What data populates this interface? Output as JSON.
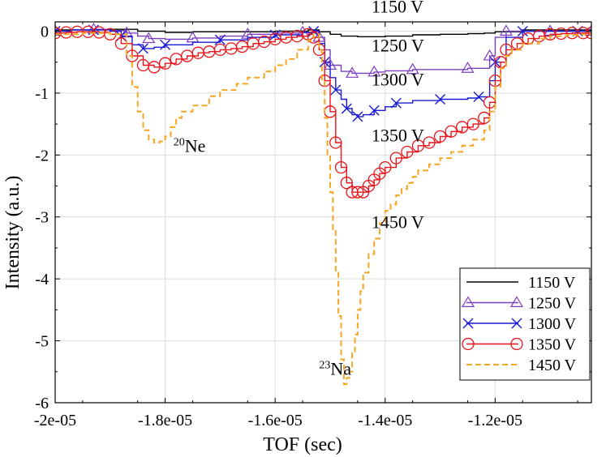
{
  "chart_data": {
    "type": "line",
    "title": "",
    "xlabel": "TOF (sec)",
    "ylabel": "Intensity (a.u.)",
    "xlim": [
      -2e-05,
      -1.025e-05
    ],
    "ylim": [
      -6,
      0.15
    ],
    "grid": true,
    "legend_position": "bottom-right",
    "x_ticks": [
      -2e-05,
      -1.8e-05,
      -1.6e-05,
      -1.4e-05,
      -1.2e-05
    ],
    "x_tick_labels": [
      "-2e-05",
      "-1.8e-05",
      "-1.6e-05",
      "-1.4e-05",
      "-1.2e-05"
    ],
    "y_ticks": [
      0,
      -1,
      -2,
      -3,
      -4,
      -5,
      -6
    ],
    "y_tick_labels": [
      "0",
      "-1",
      "-2",
      "-3",
      "-4",
      "-5",
      "-6"
    ],
    "series": [
      {
        "name": "1150 V",
        "color": "#000000",
        "style": "solid",
        "marker": "none",
        "step": true,
        "x": [
          -2e-05,
          -1.9e-05,
          -1.85e-05,
          -1.8e-05,
          -1.75e-05,
          -1.7e-05,
          -1.6e-05,
          -1.54e-05,
          -1.52e-05,
          -1.5e-05,
          -1.48e-05,
          -1.45e-05,
          -1.4e-05,
          -1.35e-05,
          -1.3e-05,
          -1.25e-05,
          -1.22e-05,
          -1.2e-05,
          -1.15e-05,
          -1.1e-05,
          -1.025e-05
        ],
        "y": [
          0.02,
          0.03,
          0.0,
          -0.02,
          -0.01,
          -0.01,
          0.0,
          0.02,
          -0.01,
          -0.05,
          -0.08,
          -0.09,
          -0.08,
          -0.06,
          -0.05,
          -0.04,
          -0.03,
          -0.01,
          0.02,
          0.02,
          0.02
        ]
      },
      {
        "name": "1250 V",
        "color": "#7b3fbf",
        "style": "solid",
        "marker": "triangle",
        "step": true,
        "x": [
          -2e-05,
          -1.97e-05,
          -1.93e-05,
          -1.9e-05,
          -1.87e-05,
          -1.85e-05,
          -1.83e-05,
          -1.8e-05,
          -1.75e-05,
          -1.7e-05,
          -1.65e-05,
          -1.6e-05,
          -1.55e-05,
          -1.53e-05,
          -1.52e-05,
          -1.51e-05,
          -1.5e-05,
          -1.48e-05,
          -1.46e-05,
          -1.44e-05,
          -1.42e-05,
          -1.4e-05,
          -1.35e-05,
          -1.3e-05,
          -1.25e-05,
          -1.23e-05,
          -1.21e-05,
          -1.2e-05,
          -1.18e-05,
          -1.15e-05,
          -1.1e-05,
          -1.05e-05,
          -1.025e-05
        ],
        "y": [
          0.0,
          0.02,
          0.03,
          0.01,
          -0.03,
          -0.08,
          -0.12,
          -0.13,
          -0.11,
          -0.08,
          -0.05,
          -0.03,
          -0.02,
          0.0,
          -0.1,
          -0.3,
          -0.55,
          -0.65,
          -0.68,
          -0.68,
          -0.66,
          -0.64,
          -0.62,
          -0.62,
          -0.6,
          -0.6,
          -0.4,
          -0.1,
          0.0,
          0.0,
          0.0,
          0.0,
          0.0
        ]
      },
      {
        "name": "1300 V",
        "color": "#1a1ad6",
        "style": "solid",
        "marker": "x",
        "step": true,
        "x": [
          -2e-05,
          -1.97e-05,
          -1.93e-05,
          -1.9e-05,
          -1.88e-05,
          -1.86e-05,
          -1.84e-05,
          -1.82e-05,
          -1.8e-05,
          -1.75e-05,
          -1.7e-05,
          -1.65e-05,
          -1.6e-05,
          -1.55e-05,
          -1.53e-05,
          -1.52e-05,
          -1.51e-05,
          -1.5e-05,
          -1.49e-05,
          -1.48e-05,
          -1.47e-05,
          -1.46e-05,
          -1.45e-05,
          -1.44e-05,
          -1.42e-05,
          -1.4e-05,
          -1.38e-05,
          -1.35e-05,
          -1.3e-05,
          -1.25e-05,
          -1.23e-05,
          -1.21e-05,
          -1.2e-05,
          -1.18e-05,
          -1.15e-05,
          -1.1e-05,
          -1.05e-05,
          -1.025e-05
        ],
        "y": [
          0.0,
          0.02,
          0.02,
          0.0,
          -0.08,
          -0.22,
          -0.28,
          -0.26,
          -0.22,
          -0.18,
          -0.14,
          -0.1,
          -0.06,
          -0.02,
          0.0,
          -0.2,
          -0.5,
          -0.75,
          -0.95,
          -1.1,
          -1.25,
          -1.35,
          -1.38,
          -1.35,
          -1.28,
          -1.22,
          -1.16,
          -1.12,
          -1.1,
          -1.08,
          -1.06,
          -0.8,
          -0.5,
          -0.1,
          0.0,
          0.0,
          0.0,
          0.0
        ]
      },
      {
        "name": "1350 V",
        "color": "#e8141a",
        "style": "solid",
        "marker": "circle",
        "step": true,
        "x": [
          -2e-05,
          -1.98e-05,
          -1.96e-05,
          -1.94e-05,
          -1.92e-05,
          -1.9e-05,
          -1.88e-05,
          -1.86e-05,
          -1.84e-05,
          -1.82e-05,
          -1.8e-05,
          -1.78e-05,
          -1.76e-05,
          -1.74e-05,
          -1.72e-05,
          -1.7e-05,
          -1.68e-05,
          -1.66e-05,
          -1.64e-05,
          -1.62e-05,
          -1.6e-05,
          -1.58e-05,
          -1.56e-05,
          -1.54e-05,
          -1.53e-05,
          -1.52e-05,
          -1.51e-05,
          -1.5e-05,
          -1.49e-05,
          -1.48e-05,
          -1.47e-05,
          -1.46e-05,
          -1.45e-05,
          -1.44e-05,
          -1.43e-05,
          -1.42e-05,
          -1.41e-05,
          -1.4e-05,
          -1.38e-05,
          -1.36e-05,
          -1.34e-05,
          -1.32e-05,
          -1.3e-05,
          -1.28e-05,
          -1.26e-05,
          -1.24e-05,
          -1.22e-05,
          -1.21e-05,
          -1.2e-05,
          -1.19e-05,
          -1.18e-05,
          -1.16e-05,
          -1.14e-05,
          -1.12e-05,
          -1.1e-05,
          -1.08e-05,
          -1.06e-05,
          -1.04e-05,
          -1.025e-05
        ],
        "y": [
          -0.03,
          -0.02,
          -0.01,
          -0.01,
          -0.02,
          -0.05,
          -0.2,
          -0.4,
          -0.55,
          -0.58,
          -0.52,
          -0.45,
          -0.4,
          -0.35,
          -0.33,
          -0.3,
          -0.28,
          -0.25,
          -0.2,
          -0.17,
          -0.13,
          -0.1,
          -0.08,
          -0.05,
          -0.1,
          -0.3,
          -0.8,
          -1.3,
          -1.8,
          -2.2,
          -2.45,
          -2.6,
          -2.6,
          -2.6,
          -2.5,
          -2.4,
          -2.3,
          -2.2,
          -2.05,
          -1.95,
          -1.85,
          -1.8,
          -1.7,
          -1.62,
          -1.55,
          -1.5,
          -1.4,
          -1.15,
          -0.8,
          -0.5,
          -0.3,
          -0.2,
          -0.12,
          -0.08,
          -0.05,
          -0.04,
          -0.03,
          -0.03,
          -0.03
        ]
      },
      {
        "name": "1450 V",
        "color": "#f5a623",
        "style": "dashed",
        "marker": "none",
        "step": true,
        "x": [
          -2e-05,
          -1.95e-05,
          -1.9e-05,
          -1.87e-05,
          -1.86e-05,
          -1.85e-05,
          -1.84e-05,
          -1.83e-05,
          -1.82e-05,
          -1.81e-05,
          -1.8e-05,
          -1.79e-05,
          -1.78e-05,
          -1.77e-05,
          -1.75e-05,
          -1.72e-05,
          -1.7e-05,
          -1.67e-05,
          -1.65e-05,
          -1.62e-05,
          -1.6e-05,
          -1.58e-05,
          -1.56e-05,
          -1.54e-05,
          -1.53e-05,
          -1.52e-05,
          -1.515e-05,
          -1.51e-05,
          -1.505e-05,
          -1.5e-05,
          -1.495e-05,
          -1.49e-05,
          -1.485e-05,
          -1.48e-05,
          -1.475e-05,
          -1.47e-05,
          -1.465e-05,
          -1.46e-05,
          -1.455e-05,
          -1.45e-05,
          -1.445e-05,
          -1.44e-05,
          -1.43e-05,
          -1.42e-05,
          -1.41e-05,
          -1.4e-05,
          -1.39e-05,
          -1.38e-05,
          -1.37e-05,
          -1.36e-05,
          -1.35e-05,
          -1.34e-05,
          -1.32e-05,
          -1.3e-05,
          -1.28e-05,
          -1.26e-05,
          -1.24e-05,
          -1.22e-05,
          -1.21e-05,
          -1.2e-05,
          -1.19e-05,
          -1.18e-05,
          -1.17e-05,
          -1.15e-05,
          -1.12e-05,
          -1.1e-05,
          -1.07e-05,
          -1.05e-05,
          -1.025e-05
        ],
        "y": [
          -0.05,
          -0.03,
          -0.05,
          -0.4,
          -0.9,
          -1.3,
          -1.6,
          -1.75,
          -1.8,
          -1.78,
          -1.7,
          -1.55,
          -1.4,
          -1.3,
          -1.2,
          -1.05,
          -0.95,
          -0.85,
          -0.75,
          -0.65,
          -0.55,
          -0.45,
          -0.3,
          -0.15,
          -0.05,
          -0.3,
          -0.8,
          -1.4,
          -2.0,
          -2.6,
          -3.2,
          -3.9,
          -4.6,
          -5.3,
          -5.7,
          -5.6,
          -5.5,
          -5.2,
          -4.9,
          -4.5,
          -4.2,
          -3.9,
          -3.6,
          -3.35,
          -3.1,
          -2.9,
          -2.8,
          -2.65,
          -2.55,
          -2.45,
          -2.35,
          -2.25,
          -2.15,
          -2.05,
          -1.95,
          -1.85,
          -1.75,
          -1.6,
          -1.3,
          -0.9,
          -0.6,
          -0.4,
          -0.3,
          -0.2,
          -0.12,
          -0.08,
          -0.06,
          -0.05,
          -0.05
        ]
      }
    ],
    "annotations": [
      {
        "base": "1150 V",
        "x": -1.425e-05,
        "y": 0.3
      },
      {
        "base": "1250 V",
        "x": -1.425e-05,
        "y": -0.33
      },
      {
        "base": "1300 V",
        "x": -1.425e-05,
        "y": -0.88
      },
      {
        "base": "1350 V",
        "x": -1.425e-05,
        "y": -1.78
      },
      {
        "base": "1450 V",
        "x": -1.425e-05,
        "y": -3.18
      },
      {
        "sup": "20",
        "base": "Ne",
        "x": -1.785e-05,
        "y": -1.95
      },
      {
        "sup": "23",
        "base": "Na",
        "x": -1.52e-05,
        "y": -5.55
      }
    ]
  }
}
